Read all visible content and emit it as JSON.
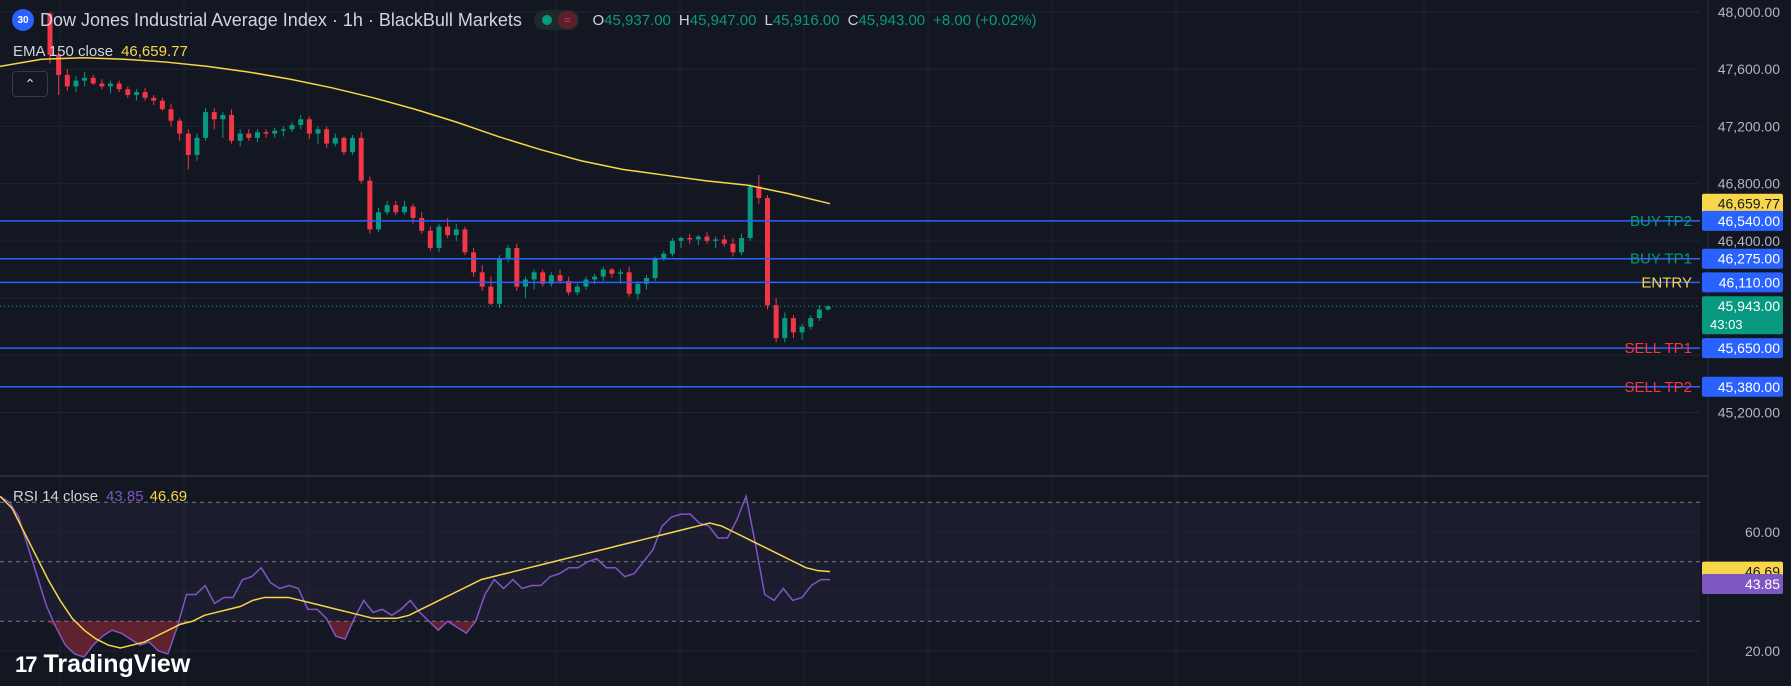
{
  "header": {
    "badge": "30",
    "title": "Dow Jones Industrial Average Index · 1h · BlackBull Markets",
    "wave_icon": "≈",
    "ohlc": [
      {
        "k": "O",
        "v": "45,937.00"
      },
      {
        "k": "H",
        "v": "45,947.00"
      },
      {
        "k": "L",
        "v": "45,916.00"
      },
      {
        "k": "C",
        "v": "45,943.00"
      },
      {
        "k": "",
        "v": "+8.00 (+0.02%)"
      }
    ]
  },
  "ema_legend": {
    "label": "EMA 150 close",
    "value": "46,659.77"
  },
  "collapse_icon": "⌃",
  "rsi_legend": {
    "label": "RSI 14 close",
    "value_rsi": "43.85",
    "value_ma": "46.69"
  },
  "logo": {
    "mark": "17",
    "text": "TradingView"
  },
  "colors": {
    "up": "#089981",
    "down": "#f23645",
    "ema": "#f7d64a",
    "rsi": "#7e57c2",
    "level": "#2962ff",
    "background": "#131722"
  },
  "chart_data": {
    "type": "candlestick",
    "price_axis": {
      "ticks": [
        "48,000.00",
        "47,600.00",
        "47,200.00",
        "46,800.00",
        "46,400.00",
        "45,200.00"
      ],
      "ylim": [
        45000,
        48100
      ]
    },
    "candles": [
      [
        47990,
        48000,
        47640,
        47700
      ],
      [
        47700,
        47720,
        47420,
        47560
      ],
      [
        47560,
        47600,
        47450,
        47480
      ],
      [
        47480,
        47550,
        47440,
        47520
      ],
      [
        47520,
        47580,
        47480,
        47540
      ],
      [
        47540,
        47560,
        47490,
        47500
      ],
      [
        47500,
        47530,
        47460,
        47480
      ],
      [
        47480,
        47520,
        47430,
        47500
      ],
      [
        47500,
        47520,
        47440,
        47460
      ],
      [
        47460,
        47480,
        47400,
        47420
      ],
      [
        47420,
        47460,
        47380,
        47440
      ],
      [
        47440,
        47470,
        47380,
        47400
      ],
      [
        47400,
        47420,
        47350,
        47380
      ],
      [
        47380,
        47400,
        47310,
        47320
      ],
      [
        47320,
        47360,
        47200,
        47240
      ],
      [
        47240,
        47260,
        47100,
        47150
      ],
      [
        47150,
        47180,
        46900,
        47000
      ],
      [
        47000,
        47150,
        46960,
        47120
      ],
      [
        47120,
        47330,
        47100,
        47300
      ],
      [
        47300,
        47330,
        47180,
        47250
      ],
      [
        47250,
        47300,
        47120,
        47280
      ],
      [
        47280,
        47320,
        47080,
        47100
      ],
      [
        47100,
        47180,
        47060,
        47150
      ],
      [
        47150,
        47180,
        47100,
        47120
      ],
      [
        47120,
        47180,
        47090,
        47160
      ],
      [
        47160,
        47180,
        47120,
        47150
      ],
      [
        47150,
        47190,
        47120,
        47170
      ],
      [
        47170,
        47200,
        47130,
        47180
      ],
      [
        47180,
        47230,
        47160,
        47210
      ],
      [
        47210,
        47280,
        47180,
        47250
      ],
      [
        47250,
        47270,
        47110,
        47150
      ],
      [
        47150,
        47200,
        47080,
        47180
      ],
      [
        47180,
        47200,
        47050,
        47080
      ],
      [
        47080,
        47150,
        47060,
        47120
      ],
      [
        47120,
        47130,
        47000,
        47020
      ],
      [
        47020,
        47140,
        47000,
        47120
      ],
      [
        47120,
        47160,
        46800,
        46820
      ],
      [
        46820,
        46850,
        46450,
        46480
      ],
      [
        46480,
        46630,
        46460,
        46600
      ],
      [
        46600,
        46680,
        46580,
        46650
      ],
      [
        46650,
        46680,
        46580,
        46600
      ],
      [
        46600,
        46680,
        46580,
        46640
      ],
      [
        46640,
        46660,
        46520,
        46560
      ],
      [
        46560,
        46600,
        46450,
        46470
      ],
      [
        46470,
        46500,
        46330,
        46350
      ],
      [
        46350,
        46520,
        46320,
        46500
      ],
      [
        46500,
        46560,
        46420,
        46440
      ],
      [
        46440,
        46520,
        46400,
        46480
      ],
      [
        46480,
        46500,
        46300,
        46320
      ],
      [
        46320,
        46350,
        46150,
        46180
      ],
      [
        46180,
        46230,
        46050,
        46080
      ],
      [
        46080,
        46150,
        45950,
        45960
      ],
      [
        45960,
        46300,
        45930,
        46280
      ],
      [
        46280,
        46370,
        46250,
        46350
      ],
      [
        46350,
        46380,
        46050,
        46080
      ],
      [
        46080,
        46150,
        46000,
        46130
      ],
      [
        46130,
        46200,
        46060,
        46180
      ],
      [
        46180,
        46200,
        46080,
        46100
      ],
      [
        46100,
        46180,
        46080,
        46160
      ],
      [
        46160,
        46200,
        46100,
        46120
      ],
      [
        46120,
        46150,
        46020,
        46040
      ],
      [
        46040,
        46100,
        46020,
        46080
      ],
      [
        46080,
        46150,
        46060,
        46130
      ],
      [
        46130,
        46170,
        46100,
        46150
      ],
      [
        46150,
        46220,
        46120,
        46200
      ],
      [
        46200,
        46210,
        46140,
        46170
      ],
      [
        46170,
        46200,
        46100,
        46180
      ],
      [
        46180,
        46220,
        46010,
        46030
      ],
      [
        46030,
        46120,
        45990,
        46100
      ],
      [
        46100,
        46160,
        46060,
        46140
      ],
      [
        46140,
        46290,
        46120,
        46280
      ],
      [
        46280,
        46330,
        46260,
        46310
      ],
      [
        46310,
        46420,
        46290,
        46400
      ],
      [
        46400,
        46430,
        46350,
        46420
      ],
      [
        46420,
        46450,
        46380,
        46410
      ],
      [
        46410,
        46440,
        46370,
        46430
      ],
      [
        46430,
        46460,
        46380,
        46400
      ],
      [
        46400,
        46430,
        46350,
        46410
      ],
      [
        46410,
        46440,
        46360,
        46380
      ],
      [
        46380,
        46420,
        46290,
        46320
      ],
      [
        46320,
        46450,
        46300,
        46420
      ],
      [
        46420,
        46800,
        46400,
        46780
      ],
      [
        46780,
        46860,
        46660,
        46700
      ],
      [
        46700,
        46720,
        45920,
        45950
      ],
      [
        45950,
        46000,
        45690,
        45720
      ],
      [
        45720,
        45900,
        45690,
        45860
      ],
      [
        45860,
        45880,
        45720,
        45760
      ],
      [
        45760,
        45820,
        45710,
        45800
      ],
      [
        45800,
        45880,
        45780,
        45860
      ],
      [
        45860,
        45950,
        45840,
        45920
      ],
      [
        45920,
        45947,
        45916,
        45943
      ]
    ],
    "ema150": {
      "name": "EMA 150 close",
      "last": 46659.77,
      "values": [
        47620,
        47670,
        47680,
        47670,
        47650,
        47620,
        47580,
        47530,
        47470,
        47400,
        47320,
        47230,
        47130,
        47040,
        46960,
        46900,
        46860,
        46820,
        46790,
        46730,
        46660
      ]
    },
    "levels": [
      {
        "label": "BUY TP2",
        "price": 46540,
        "price_label": "46,540.00",
        "color": "#089981"
      },
      {
        "label": "BUY TP1",
        "price": 46275,
        "price_label": "46,275.00",
        "color": "#089981"
      },
      {
        "label": "ENTRY",
        "price": 46110,
        "price_label": "46,110.00",
        "color": "#f7d64a"
      },
      {
        "label": "SELL TP1",
        "price": 45650,
        "price_label": "45,650.00",
        "color": "#f23645"
      },
      {
        "label": "SELL TP2",
        "price": 45380,
        "price_label": "45,380.00",
        "color": "#f23645"
      }
    ],
    "ema_price_label": "46,659.77",
    "last_price_label": "45,943.00",
    "countdown": "43:03",
    "rsi": {
      "name": "RSI 14 close",
      "axis_ticks": [
        "60.00",
        "20.00"
      ],
      "ylim": [
        12,
        81
      ],
      "bands": [
        30,
        50,
        70
      ],
      "values": [
        72,
        70,
        65,
        55,
        45,
        35,
        28,
        22,
        19,
        18,
        22,
        25,
        27,
        26,
        24,
        22,
        23,
        20,
        19,
        28,
        39,
        39,
        42,
        36,
        38,
        38,
        44,
        45,
        48,
        43,
        41,
        42,
        41,
        34,
        34,
        31,
        25,
        24,
        31,
        37,
        33,
        34,
        32,
        34,
        37,
        33,
        30,
        27,
        30,
        28,
        26,
        30,
        39,
        44,
        41,
        44,
        41,
        42,
        42,
        45,
        46,
        48,
        48,
        50,
        51,
        48,
        48,
        45,
        46,
        50,
        54,
        62,
        65,
        66,
        66,
        63,
        62,
        58,
        58,
        64,
        72,
        56,
        39,
        37,
        41,
        37,
        38,
        42,
        44,
        44
      ],
      "ma": [
        72,
        68,
        60,
        52,
        44,
        37,
        31,
        27,
        24,
        22,
        21,
        22,
        23,
        25,
        27,
        29,
        30,
        32,
        33,
        34,
        35,
        37,
        38,
        38,
        38,
        37,
        36,
        35,
        34,
        33,
        32,
        31,
        31,
        31,
        32,
        34,
        36,
        38,
        40,
        42,
        44,
        45,
        46,
        47,
        48,
        49,
        50,
        51,
        52,
        53,
        54,
        55,
        56,
        57,
        58,
        59,
        60,
        61,
        62,
        63,
        62,
        60,
        58,
        56,
        54,
        52,
        50,
        48,
        47,
        46.69
      ],
      "last_rsi_label": "43.85",
      "last_ma_label": "46.69"
    }
  }
}
